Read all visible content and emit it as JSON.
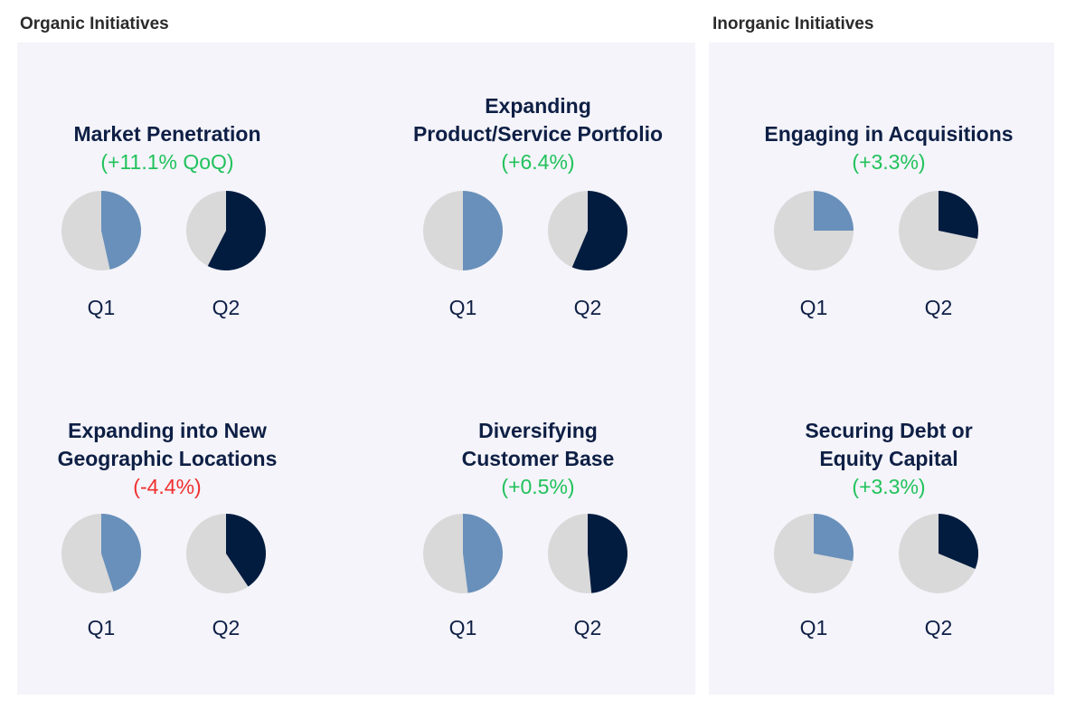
{
  "sections": {
    "organic": "Organic Initiatives",
    "inorganic": "Inorganic Initiatives"
  },
  "colors": {
    "q1": "#6990bb",
    "q2": "#021c40",
    "rest": "#d9d9d9",
    "positive": "#21c25b",
    "negative": "#f0302e",
    "title": "#0e1f45"
  },
  "chart_data": {
    "type": "pie",
    "quarters": [
      "Q1",
      "Q2"
    ],
    "charts": [
      {
        "title_lines": [
          "Market Penetration"
        ],
        "change": "(+11.1% QoQ)",
        "sign": "positive",
        "values": [
          46.5,
          57.6
        ]
      },
      {
        "title_lines": [
          "Expanding",
          "Product/Service Portfolio"
        ],
        "change": "(+6.4%)",
        "sign": "positive",
        "values": [
          50.0,
          56.4
        ]
      },
      {
        "title_lines": [
          "Engaging in Acquisitions"
        ],
        "change": "(+3.3%)",
        "sign": "positive",
        "values": [
          25.0,
          28.3
        ]
      },
      {
        "title_lines": [
          "Expanding into New",
          "Geographic Locations"
        ],
        "change": "(-4.4%)",
        "sign": "negative",
        "values": [
          45.0,
          40.6
        ]
      },
      {
        "title_lines": [
          "Diversifying",
          "Customer Base"
        ],
        "change": "(+0.5%)",
        "sign": "positive",
        "values": [
          48.0,
          48.5
        ]
      },
      {
        "title_lines": [
          "Securing Debt or",
          "Equity Capital"
        ],
        "change": "(+3.3%)",
        "sign": "positive",
        "values": [
          28.0,
          31.3
        ]
      }
    ]
  }
}
